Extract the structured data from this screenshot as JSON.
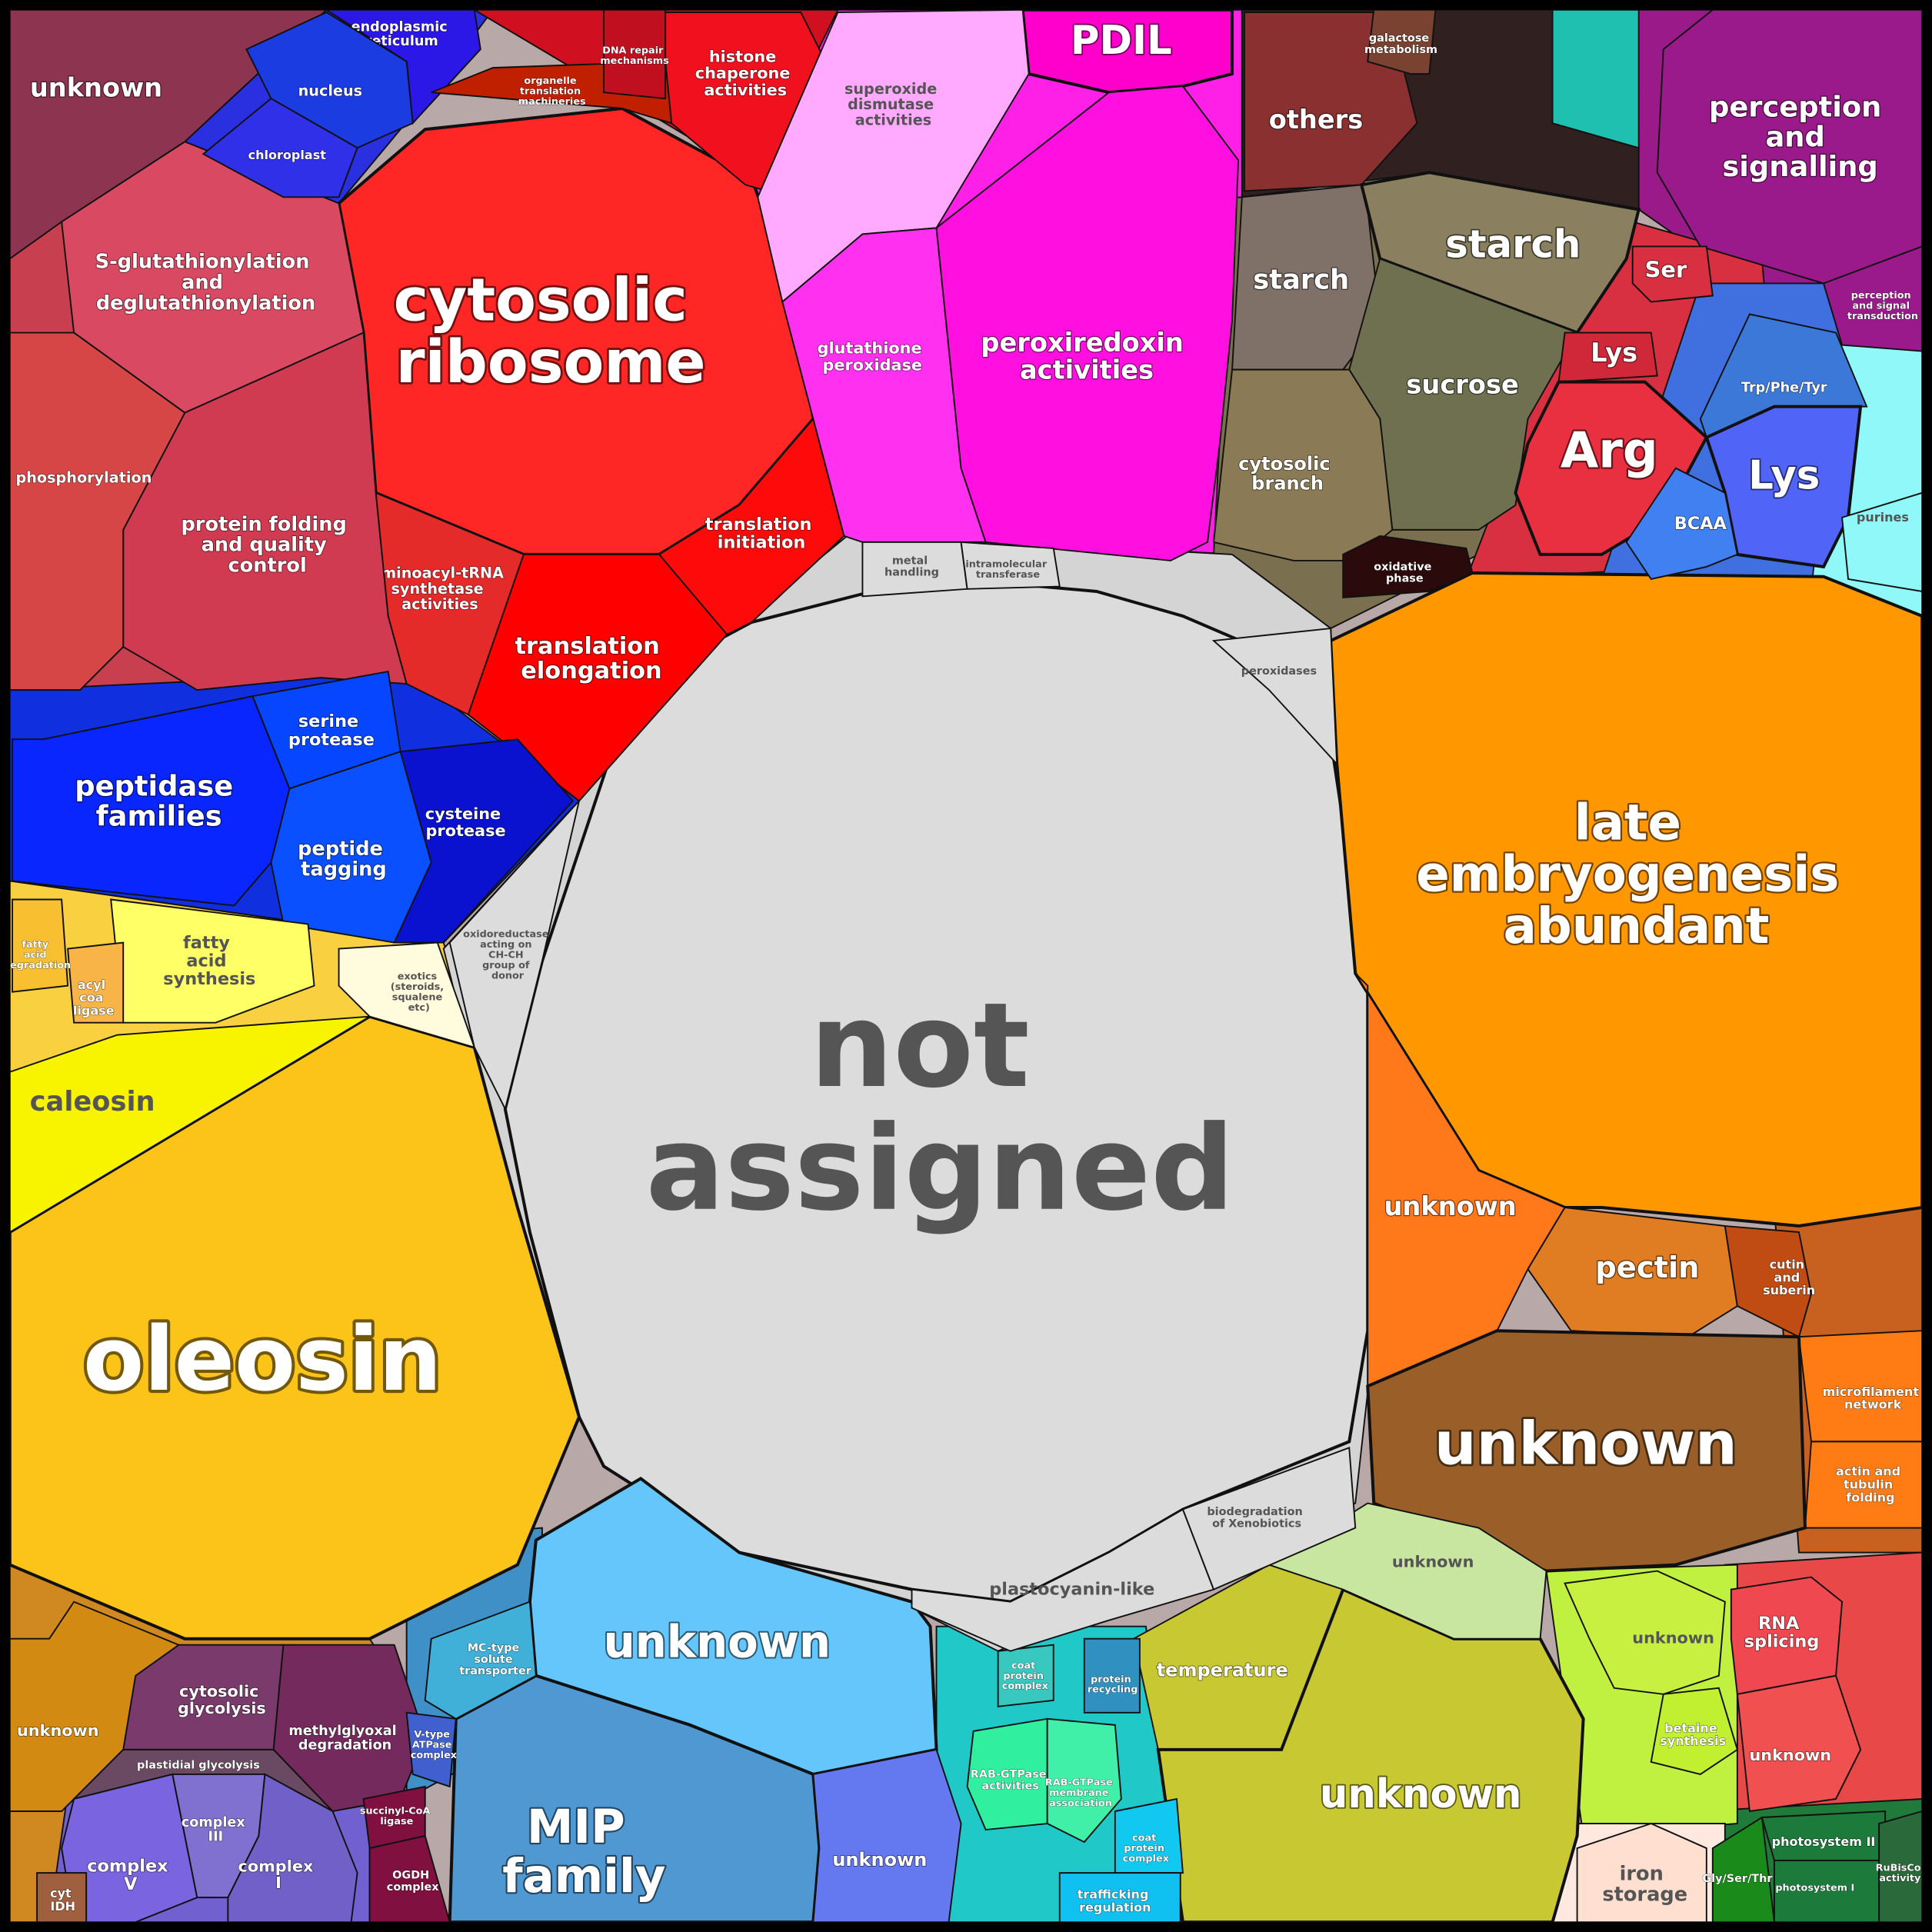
{
  "cells": [
    {
      "label": "not assigned",
      "color": "#dcdcdc"
    },
    {
      "label": "cytosolic ribosome",
      "color": "#ff2626"
    },
    {
      "label": "aminoacyl-tRNA synthetase activities",
      "color": "#e52a2a"
    },
    {
      "label": "translation elongation",
      "color": "#ff0000"
    },
    {
      "label": "translation initiation",
      "color": "#ff0a0a"
    },
    {
      "label": "histone chaperone activities",
      "color": "#f0101e"
    },
    {
      "label": "S-glutathionylation and deglutathionylation",
      "color": "#d94a62"
    },
    {
      "label": "protein folding and quality control",
      "color": "#d03b52"
    },
    {
      "label": "phosphorylation",
      "color": "#d64646"
    },
    {
      "label": "unknown",
      "color": "#8d3450"
    },
    {
      "label": "endoplasmic reticulum",
      "color": "#2c18e6"
    },
    {
      "label": "nucleus",
      "color": "#1a3ce0"
    },
    {
      "label": "chloroplast",
      "color": "#3030e8"
    },
    {
      "label": "peptidase families",
      "color": "#0a26ff"
    },
    {
      "label": "serine protease",
      "color": "#0646ff"
    },
    {
      "label": "peptide tagging",
      "color": "#0a50ff"
    },
    {
      "label": "cysteine protease",
      "color": "#0a12d0"
    },
    {
      "label": "oleosin",
      "color": "#fcc418"
    },
    {
      "label": "caleosin",
      "color": "#f8f400"
    },
    {
      "label": "fatty acid synthesis",
      "color": "#ffff66"
    },
    {
      "label": "acyl coa ligase",
      "color": "#f8b446"
    },
    {
      "label": "exotics (steroids, squalene etc)",
      "color": "#fffbdc"
    },
    {
      "label": "late embryogenesis abundant",
      "color": "#ff9800"
    },
    {
      "label": "unknown",
      "color": "#ff781a"
    },
    {
      "label": "pectin",
      "color": "#e07c22"
    },
    {
      "label": "cutin and suberin",
      "color": "#c04c14"
    },
    {
      "label": "microfilament network",
      "color": "#ff7c14"
    },
    {
      "label": "actin and tubulin folding",
      "color": "#ff7c14"
    },
    {
      "label": "unknown",
      "color": "#9a5f28"
    },
    {
      "label": "temperature",
      "color": "#c8c832"
    },
    {
      "label": "unknown",
      "color": "#c8c832"
    },
    {
      "label": "unknown",
      "color": "#c8e6a0"
    },
    {
      "label": "unknown",
      "color": "#64c6fa"
    },
    {
      "label": "MIP family",
      "color": "#5098d2"
    },
    {
      "label": "unknown",
      "color": "#6478f0"
    },
    {
      "label": "cytosolic glycolysis",
      "color": "#7a3a6c"
    },
    {
      "label": "methylglyoxal degradation",
      "color": "#742a5c"
    },
    {
      "label": "unknown",
      "color": "#d28a12"
    },
    {
      "label": "plastidial glycolysis",
      "color": "#6a4a62"
    },
    {
      "label": "complex V",
      "color": "#7a64e0"
    },
    {
      "label": "complex III",
      "color": "#8070d0"
    },
    {
      "label": "complex I",
      "color": "#7060c8"
    },
    {
      "label": "PDIL",
      "color": "#ff00cc"
    },
    {
      "label": "superoxide dismutase activities",
      "color": "#ffaaff"
    },
    {
      "label": "glutathione peroxidase",
      "color": "#ff30f0"
    },
    {
      "label": "peroxiredoxin activities",
      "color": "#ff10e0"
    },
    {
      "label": "others",
      "color": "#8b3030"
    },
    {
      "label": "galactose metabolism",
      "color": "#7a4230"
    },
    {
      "label": "starch",
      "color": "#7f7068"
    },
    {
      "label": "starch",
      "color": "#8a8060"
    },
    {
      "label": "sucrose",
      "color": "#6e7050"
    },
    {
      "label": "cytosolic branch",
      "color": "#8a7a55"
    },
    {
      "label": "oxidative phase",
      "color": "#2a0a0a"
    },
    {
      "label": "perception and signalling",
      "color": "#9a1a8c"
    },
    {
      "label": "perception and signal transduction",
      "color": "#9a1a8c"
    },
    {
      "label": "Ser",
      "color": "#d83040"
    },
    {
      "label": "Lys",
      "color": "#d02838"
    },
    {
      "label": "Arg",
      "color": "#e83040"
    },
    {
      "label": "Trp/Phe/Tyr",
      "color": "#3c78d8"
    },
    {
      "label": "Lys",
      "color": "#5064f8"
    },
    {
      "label": "BCAA",
      "color": "#4080f0"
    },
    {
      "label": "purines",
      "color": "#90f8f8"
    },
    {
      "label": "RNA splicing",
      "color": "#f04850"
    },
    {
      "label": "unknown",
      "color": "#f05050"
    },
    {
      "label": "unknown",
      "color": "#c8f040"
    },
    {
      "label": "betaine synthesis",
      "color": "#c0f030"
    },
    {
      "label": "iron storage",
      "color": "#ffe0d0"
    },
    {
      "label": "photosystem II",
      "color": "#1c7a3a"
    },
    {
      "label": "photosystem I",
      "color": "#1c7a3a"
    },
    {
      "label": "Gly/Ser/Thr",
      "color": "#1a8a1a"
    },
    {
      "label": "RuBisCo activity",
      "color": "#2a6a3a"
    },
    {
      "label": "coat protein complex",
      "color": "#38c8c0"
    },
    {
      "label": "protein recycling",
      "color": "#3090c0"
    },
    {
      "label": "RAB-GTPase activities",
      "color": "#30f0a0"
    },
    {
      "label": "RAB-GTPase membrane association",
      "color": "#40f0a8"
    },
    {
      "label": "coat protein complex",
      "color": "#10c8f0"
    },
    {
      "label": "trafficking regulation",
      "color": "#10c0f0"
    },
    {
      "label": "MC-type solute transporter",
      "color": "#40b0d8"
    },
    {
      "label": "V-type ATPase complex",
      "color": "#4060d0"
    },
    {
      "label": "succinyl-CoA ligase",
      "color": "#801040"
    },
    {
      "label": "OGDH complex",
      "color": "#801040"
    },
    {
      "label": "cyt IDH",
      "color": "#a06040"
    },
    {
      "label": "organelle translation machineries",
      "color": "#c02000"
    },
    {
      "label": "DNA repair mechanisms",
      "color": "#c01020"
    },
    {
      "label": "fatty acid degradation",
      "color": "#f8c030"
    },
    {
      "label": "peroxidases",
      "color": "#dcdcdc"
    },
    {
      "label": "metal handling",
      "color": "#dcdcdc"
    },
    {
      "label": "intramolecular transferase",
      "color": "#dcdcdc"
    },
    {
      "label": "plastocyanin-like",
      "color": "#dcdcdc"
    },
    {
      "label": "biodegradation of Xenobiotics",
      "color": "#dcdcdc"
    },
    {
      "label": "oxidoreductase acting on CH-CH group of donor",
      "color": "#dcdcdc"
    }
  ]
}
